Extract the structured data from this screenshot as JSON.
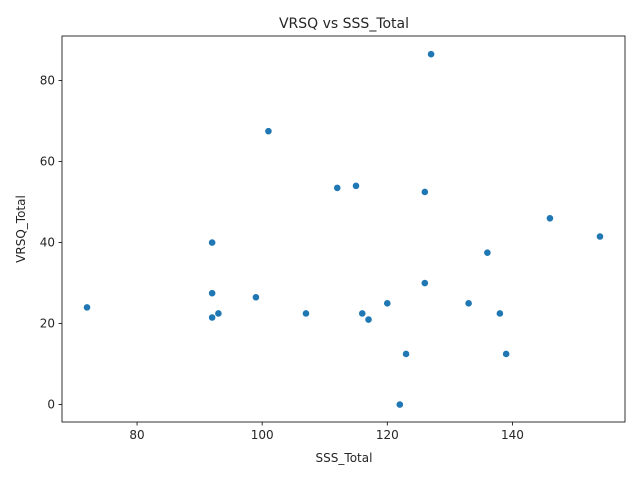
{
  "chart_data": {
    "type": "scatter",
    "title": "VRSQ vs SSS_Total",
    "xlabel": "SSS_Total",
    "ylabel": "VRSQ_Total",
    "xlim": [
      68,
      158
    ],
    "ylim": [
      -4.3,
      91
    ],
    "xticks": [
      80,
      100,
      120,
      140
    ],
    "yticks": [
      0,
      20,
      40,
      60,
      80
    ],
    "grid": false,
    "marker_color": "#1f77b4",
    "points": [
      {
        "x": 127,
        "y": 86.5
      },
      {
        "x": 101,
        "y": 67.5
      },
      {
        "x": 115,
        "y": 54
      },
      {
        "x": 112,
        "y": 53.5
      },
      {
        "x": 126,
        "y": 52.5
      },
      {
        "x": 146,
        "y": 46
      },
      {
        "x": 154,
        "y": 41.5
      },
      {
        "x": 92,
        "y": 40
      },
      {
        "x": 136,
        "y": 37.5
      },
      {
        "x": 126,
        "y": 30
      },
      {
        "x": 92,
        "y": 27.5
      },
      {
        "x": 99,
        "y": 26.5
      },
      {
        "x": 120,
        "y": 25
      },
      {
        "x": 133,
        "y": 25
      },
      {
        "x": 72,
        "y": 24
      },
      {
        "x": 93,
        "y": 22.5
      },
      {
        "x": 107,
        "y": 22.5
      },
      {
        "x": 116,
        "y": 22.5
      },
      {
        "x": 138,
        "y": 22.5
      },
      {
        "x": 92,
        "y": 21.5
      },
      {
        "x": 117,
        "y": 21
      },
      {
        "x": 123,
        "y": 12.5
      },
      {
        "x": 139,
        "y": 12.5
      },
      {
        "x": 122,
        "y": 0
      }
    ]
  }
}
